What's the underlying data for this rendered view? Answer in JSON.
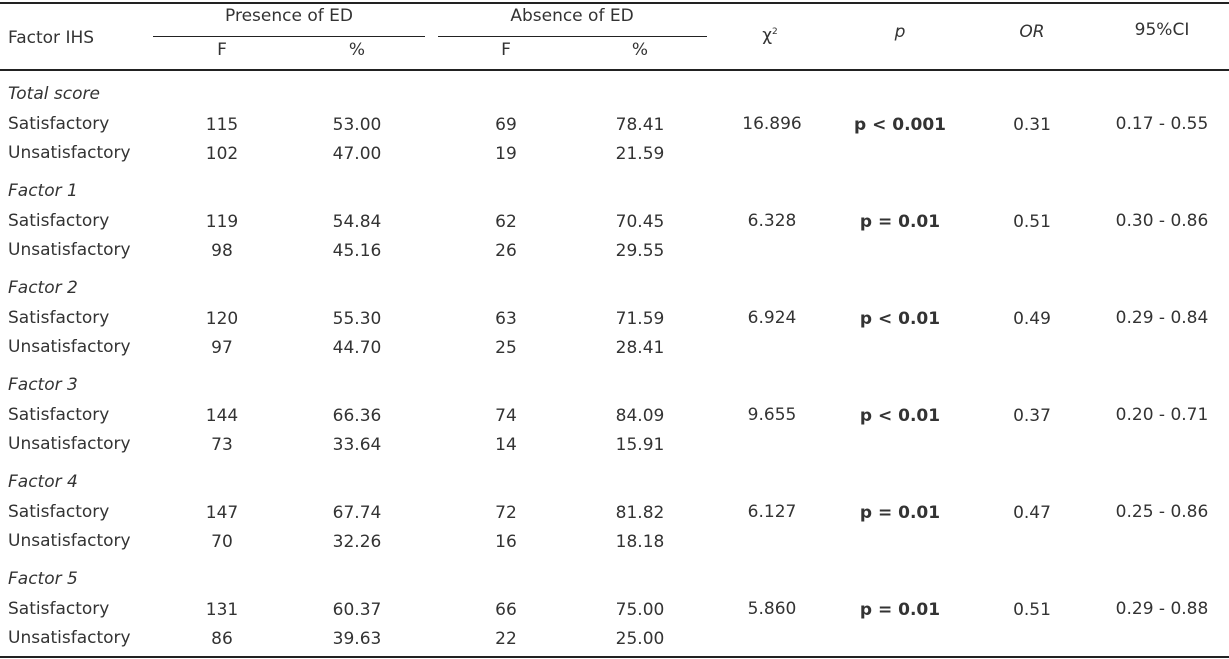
{
  "header": {
    "factor": "Factor IHS",
    "presence": "Presence of ED",
    "absence": "Absence of ED",
    "sub": [
      "F",
      "%",
      "F",
      "%"
    ],
    "chi": {
      "symbol": "χ",
      "sup": "2"
    },
    "p": "p",
    "or": "OR",
    "ci": "95%CI"
  },
  "groups": [
    {
      "title": "Total score",
      "rows": [
        {
          "label": "Satisfactory",
          "presence_f": "115",
          "presence_pct": "53.00",
          "absence_f": "69",
          "absence_pct": "78.41"
        },
        {
          "label": "Unsatisfactory",
          "presence_f": "102",
          "presence_pct": "47.00",
          "absence_f": "19",
          "absence_pct": "21.59"
        }
      ],
      "chi2": "16.896",
      "p": "p < 0.001",
      "or": "0.31",
      "ci": "0.17 - 0.55"
    },
    {
      "title": "Factor 1",
      "rows": [
        {
          "label": "Satisfactory",
          "presence_f": "119",
          "presence_pct": "54.84",
          "absence_f": "62",
          "absence_pct": "70.45"
        },
        {
          "label": "Unsatisfactory",
          "presence_f": "98",
          "presence_pct": "45.16",
          "absence_f": "26",
          "absence_pct": "29.55"
        }
      ],
      "chi2": "6.328",
      "p": "p = 0.01",
      "or": "0.51",
      "ci": "0.30 - 0.86"
    },
    {
      "title": "Factor 2",
      "rows": [
        {
          "label": "Satisfactory",
          "presence_f": "120",
          "presence_pct": "55.30",
          "absence_f": "63",
          "absence_pct": "71.59"
        },
        {
          "label": "Unsatisfactory",
          "presence_f": "97",
          "presence_pct": "44.70",
          "absence_f": "25",
          "absence_pct": "28.41"
        }
      ],
      "chi2": "6.924",
      "p": "p < 0.01",
      "or": "0.49",
      "ci": "0.29 - 0.84"
    },
    {
      "title": "Factor 3",
      "rows": [
        {
          "label": "Satisfactory",
          "presence_f": "144",
          "presence_pct": "66.36",
          "absence_f": "74",
          "absence_pct": "84.09"
        },
        {
          "label": "Unsatisfactory",
          "presence_f": "73",
          "presence_pct": "33.64",
          "absence_f": "14",
          "absence_pct": "15.91"
        }
      ],
      "chi2": "9.655",
      "p": "p < 0.01",
      "or": "0.37",
      "ci": "0.20 - 0.71"
    },
    {
      "title": "Factor 4",
      "rows": [
        {
          "label": "Satisfactory",
          "presence_f": "147",
          "presence_pct": "67.74",
          "absence_f": "72",
          "absence_pct": "81.82"
        },
        {
          "label": "Unsatisfactory",
          "presence_f": "70",
          "presence_pct": "32.26",
          "absence_f": "16",
          "absence_pct": "18.18"
        }
      ],
      "chi2": "6.127",
      "p": "p = 0.01",
      "or": "0.47",
      "ci": "0.25 - 0.86"
    },
    {
      "title": "Factor 5",
      "rows": [
        {
          "label": "Satisfactory",
          "presence_f": "131",
          "presence_pct": "60.37",
          "absence_f": "66",
          "absence_pct": "75.00"
        },
        {
          "label": "Unsatisfactory",
          "presence_f": "86",
          "presence_pct": "39.63",
          "absence_f": "22",
          "absence_pct": "25.00"
        }
      ],
      "chi2": "5.860",
      "p": "p = 0.01",
      "or": "0.51",
      "ci": "0.29 - 0.88"
    }
  ]
}
